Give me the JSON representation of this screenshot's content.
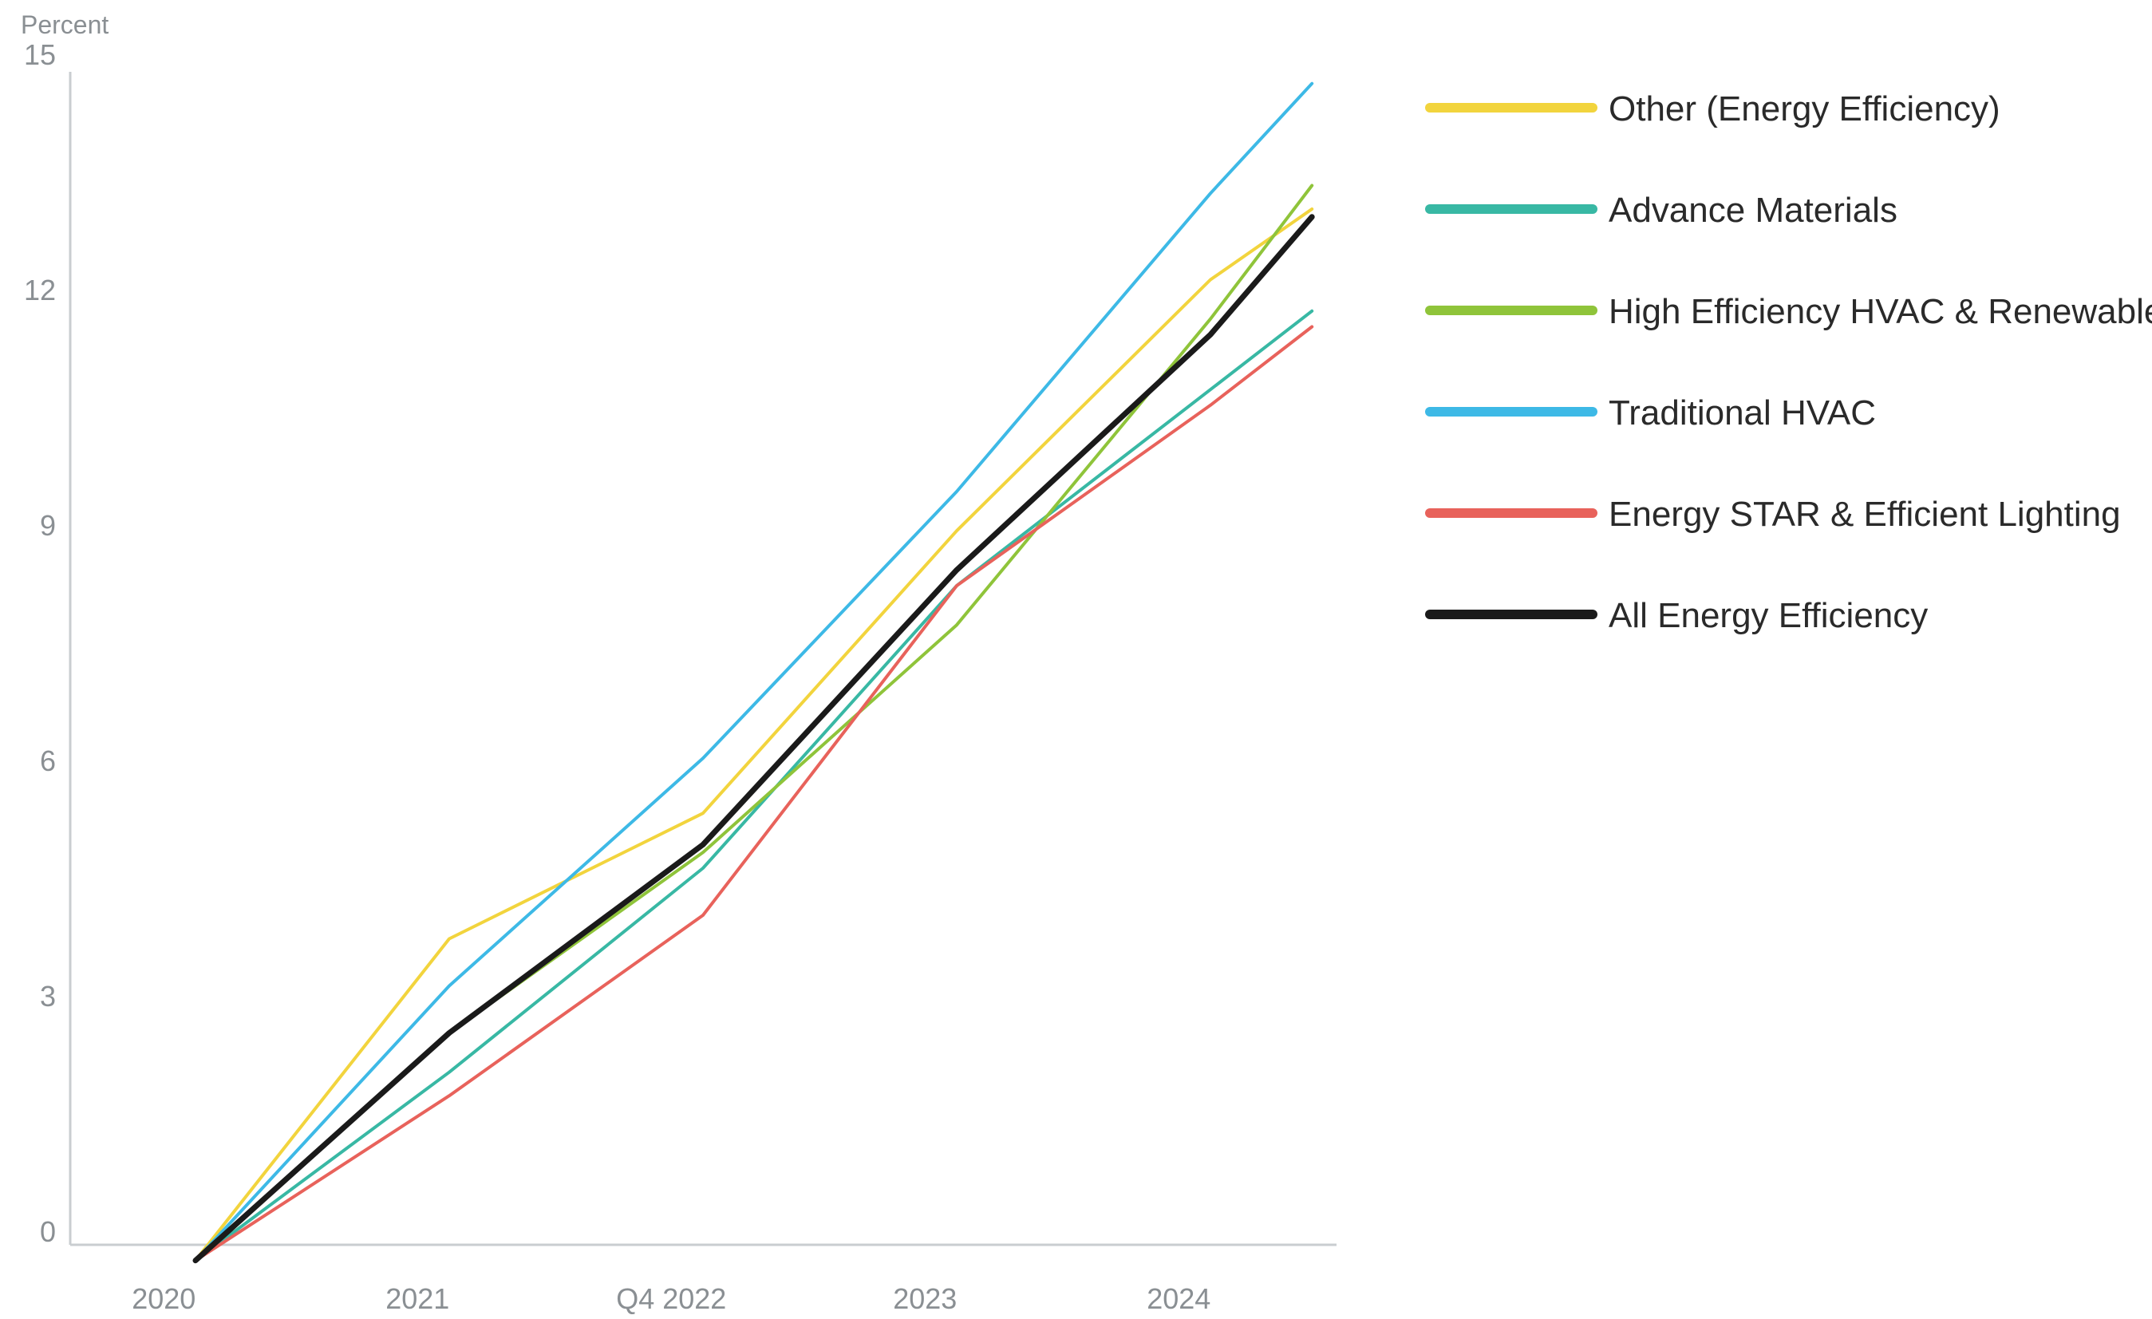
{
  "chart_data": {
    "type": "line",
    "title": "",
    "ylabel": "Percent",
    "xlabel": "",
    "categories": [
      "2020",
      "2021",
      "Q4 2022",
      "2023",
      "2024"
    ],
    "x": [
      0,
      1,
      2,
      3,
      4,
      4.4
    ],
    "x_tick_values": [
      -0.125,
      0.875,
      1.875,
      2.875,
      3.875
    ],
    "ylim": [
      0,
      15
    ],
    "yticks": [
      0,
      3,
      6,
      9,
      12,
      15
    ],
    "grid": false,
    "legend_position": "right",
    "series": [
      {
        "name": "Other (Energy Efficiency)",
        "color": "#f2d43d",
        "values": [
          -0.2,
          3.9,
          5.5,
          9.1,
          12.3,
          13.2
        ]
      },
      {
        "name": "Advance Materials",
        "color": "#38b8a4",
        "values": [
          -0.2,
          2.2,
          4.8,
          8.4,
          10.9,
          11.9
        ]
      },
      {
        "name": "High Efficiency HVAC & Renewable H&C",
        "color": "#8fc43a",
        "values": [
          -0.2,
          2.7,
          5.0,
          7.9,
          11.8,
          13.5
        ]
      },
      {
        "name": "Traditional HVAC",
        "color": "#3db9e6",
        "values": [
          -0.2,
          3.3,
          6.2,
          9.6,
          13.4,
          14.8
        ]
      },
      {
        "name": "Energy STAR & Efficient Lighting",
        "color": "#e8625b",
        "values": [
          -0.2,
          1.9,
          4.2,
          8.4,
          10.7,
          11.7
        ]
      },
      {
        "name": "All Energy Efficiency",
        "color": "#1a1a1a",
        "values": [
          -0.2,
          2.7,
          5.1,
          8.6,
          11.6,
          13.1
        ]
      }
    ]
  }
}
